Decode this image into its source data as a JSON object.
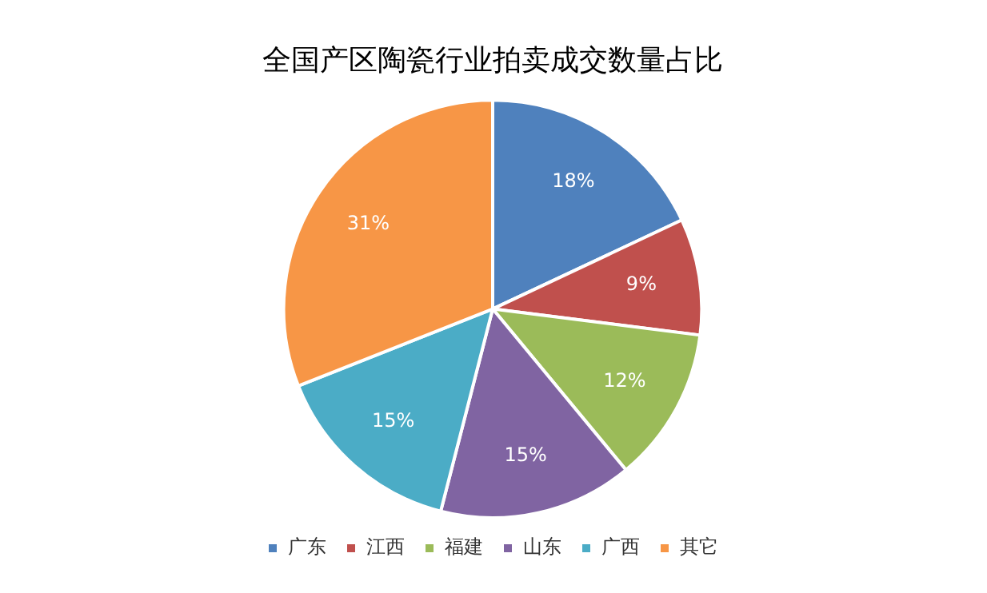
{
  "chart_data": {
    "type": "pie",
    "title": "全国产区陶瓷行业拍卖成交数量占比",
    "categories": [
      "广东",
      "江西",
      "福建",
      "山东",
      "广西",
      "其它"
    ],
    "values": [
      18,
      9,
      12,
      15,
      15,
      31
    ],
    "colors": [
      "#4f81bd",
      "#c0504d",
      "#9bbb59",
      "#8064a2",
      "#4bacc6",
      "#f79646"
    ],
    "value_labels": [
      "18%",
      "9%",
      "12%",
      "15%",
      "15%",
      "31%"
    ],
    "legend": "bottom"
  }
}
